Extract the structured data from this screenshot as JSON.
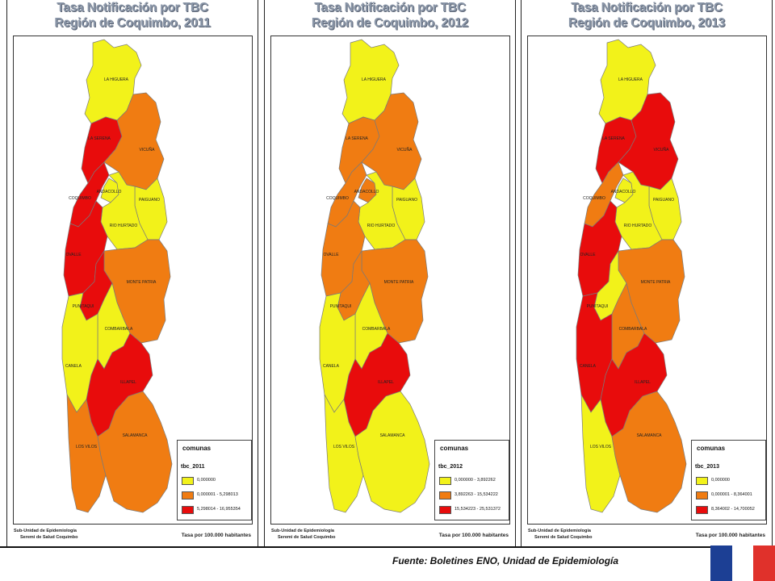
{
  "colors": {
    "low": "#f2f21a",
    "mid": "#f07c12",
    "high": "#e80c0c"
  },
  "comunas": [
    "LA HIGUERA",
    "LA SERENA",
    "VICUÑA",
    "COQUIMBO",
    "ANDACOLLO",
    "PAIGUANO",
    "RIO HURTADO",
    "OVALLE",
    "MONTE PATRIA",
    "PUNITAQUI",
    "COMBARBALA",
    "CANELA",
    "ILLAPEL",
    "LOS VILOS",
    "SALAMANCA"
  ],
  "panels": [
    {
      "title_line1": "Tasa Notificación por TBC",
      "title_line2": "Región de Coquimbo, 2011",
      "legend_title": "comunas",
      "legend_field": "tbc_2011",
      "legend_items": [
        "0,000000",
        "0,000001 - 5,298013",
        "5,298014 - 16,955354"
      ],
      "classes": {
        "LA HIGUERA": "low",
        "LA SERENA": "high",
        "VICUÑA": "mid",
        "COQUIMBO": "high",
        "ANDACOLLO": "low",
        "PAIGUANO": "low",
        "RIO HURTADO": "low",
        "OVALLE": "high",
        "MONTE PATRIA": "mid",
        "PUNITAQUI": "high",
        "COMBARBALA": "low",
        "CANELA": "low",
        "ILLAPEL": "high",
        "LOS VILOS": "mid",
        "SALAMANCA": "mid"
      },
      "footer_org_line1": "Sub-Unidad de Epidemiología",
      "footer_org_line2": "Seremi de Salud Coquimbo",
      "footer_rate": "Tasa por 100.000 habitantes"
    },
    {
      "title_line1": "Tasa Notificación por TBC",
      "title_line2": "Región de Coquimbo, 2012",
      "legend_title": "comunas",
      "legend_field": "tbc_2012",
      "legend_items": [
        "0,000000 - 3,892262",
        "3,892263 - 15,534222",
        "15,534223 - 25,531372"
      ],
      "classes": {
        "LA HIGUERA": "low",
        "LA SERENA": "mid",
        "VICUÑA": "mid",
        "COQUIMBO": "mid",
        "ANDACOLLO": "mid",
        "PAIGUANO": "low",
        "RIO HURTADO": "low",
        "OVALLE": "mid",
        "MONTE PATRIA": "mid",
        "PUNITAQUI": "mid",
        "COMBARBALA": "low",
        "CANELA": "low",
        "ILLAPEL": "high",
        "LOS VILOS": "low",
        "SALAMANCA": "low"
      },
      "footer_org_line1": "Sub-Unidad de Epidemiología",
      "footer_org_line2": "Seremi de Salud Coquimbo",
      "footer_rate": "Tasa por 100.000 habitantes"
    },
    {
      "title_line1": "Tasa Notificación por TBC",
      "title_line2": "Región de Coquimbo, 2013",
      "legend_title": "comunas",
      "legend_field": "tbc_2013",
      "legend_items": [
        "0,000000",
        "0,000001 - 8,364001",
        "8,364002 - 14,700052"
      ],
      "classes": {
        "LA HIGUERA": "low",
        "LA SERENA": "high",
        "VICUÑA": "high",
        "COQUIMBO": "mid",
        "ANDACOLLO": "low",
        "PAIGUANO": "low",
        "RIO HURTADO": "low",
        "OVALLE": "high",
        "MONTE PATRIA": "mid",
        "PUNITAQUI": "low",
        "COMBARBALA": "mid",
        "CANELA": "high",
        "ILLAPEL": "high",
        "LOS VILOS": "low",
        "SALAMANCA": "mid"
      },
      "footer_org_line1": "Sub-Unidad de Epidemiología",
      "footer_org_line2": "Seremi de Salud Coquimbo",
      "footer_rate": "Tasa por 100.000 habitantes"
    }
  ],
  "source_text": "Fuente: Boletines ENO, Unidad de Epidemiología",
  "flag_colors": {
    "blue": "#1c3f94",
    "white": "#ffffff",
    "red": "#e0312b"
  }
}
